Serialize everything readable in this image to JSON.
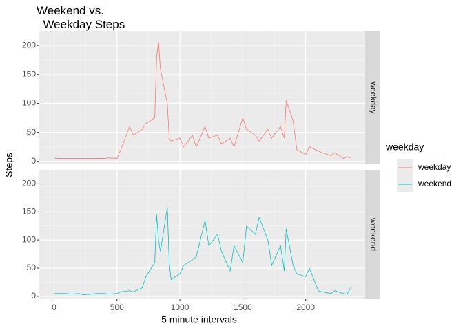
{
  "chart_data": {
    "type": "line",
    "title": "Weekend vs.\n  Weekday Steps",
    "x_label": "5 minute intervals",
    "y_label": "Steps",
    "legend_title": "weekday",
    "facet": true,
    "grid": true,
    "legend_position": "right",
    "xlim": [
      -117.75,
      2472.75
    ],
    "xticks": [
      0,
      500,
      1000,
      1500,
      2000
    ],
    "ylim": [
      -5,
      225
    ],
    "yticks": [
      0,
      50,
      100,
      150,
      200
    ],
    "x": [
      0,
      30,
      100,
      130,
      200,
      230,
      300,
      330,
      400,
      430,
      500,
      530,
      600,
      630,
      700,
      730,
      800,
      815,
      830,
      845,
      900,
      915,
      930,
      1000,
      1030,
      1100,
      1130,
      1200,
      1230,
      1300,
      1330,
      1400,
      1430,
      1500,
      1530,
      1600,
      1630,
      1700,
      1730,
      1800,
      1830,
      1845,
      1900,
      1930,
      2000,
      2030,
      2100,
      2130,
      2200,
      2230,
      2300,
      2330,
      2355
    ],
    "series": [
      {
        "name": "weekday",
        "color": "#f8766d",
        "values": [
          6,
          5,
          5,
          5,
          5,
          5,
          5,
          5,
          5,
          6,
          5,
          20,
          60,
          45,
          55,
          65,
          75,
          180,
          206,
          160,
          100,
          40,
          35,
          40,
          25,
          45,
          25,
          60,
          40,
          45,
          30,
          40,
          25,
          75,
          55,
          45,
          35,
          55,
          40,
          60,
          40,
          105,
          70,
          20,
          12,
          25,
          18,
          15,
          10,
          15,
          5,
          8,
          6
        ]
      },
      {
        "name": "weekend",
        "color": "#00bfc4",
        "values": [
          5,
          5,
          5,
          4,
          5,
          3,
          4,
          5,
          5,
          4,
          5,
          8,
          10,
          8,
          15,
          35,
          60,
          145,
          100,
          80,
          158,
          60,
          30,
          40,
          55,
          65,
          70,
          135,
          90,
          110,
          80,
          45,
          90,
          60,
          125,
          110,
          140,
          100,
          55,
          90,
          45,
          120,
          55,
          40,
          35,
          50,
          10,
          8,
          5,
          10,
          5,
          4,
          15
        ]
      }
    ]
  }
}
